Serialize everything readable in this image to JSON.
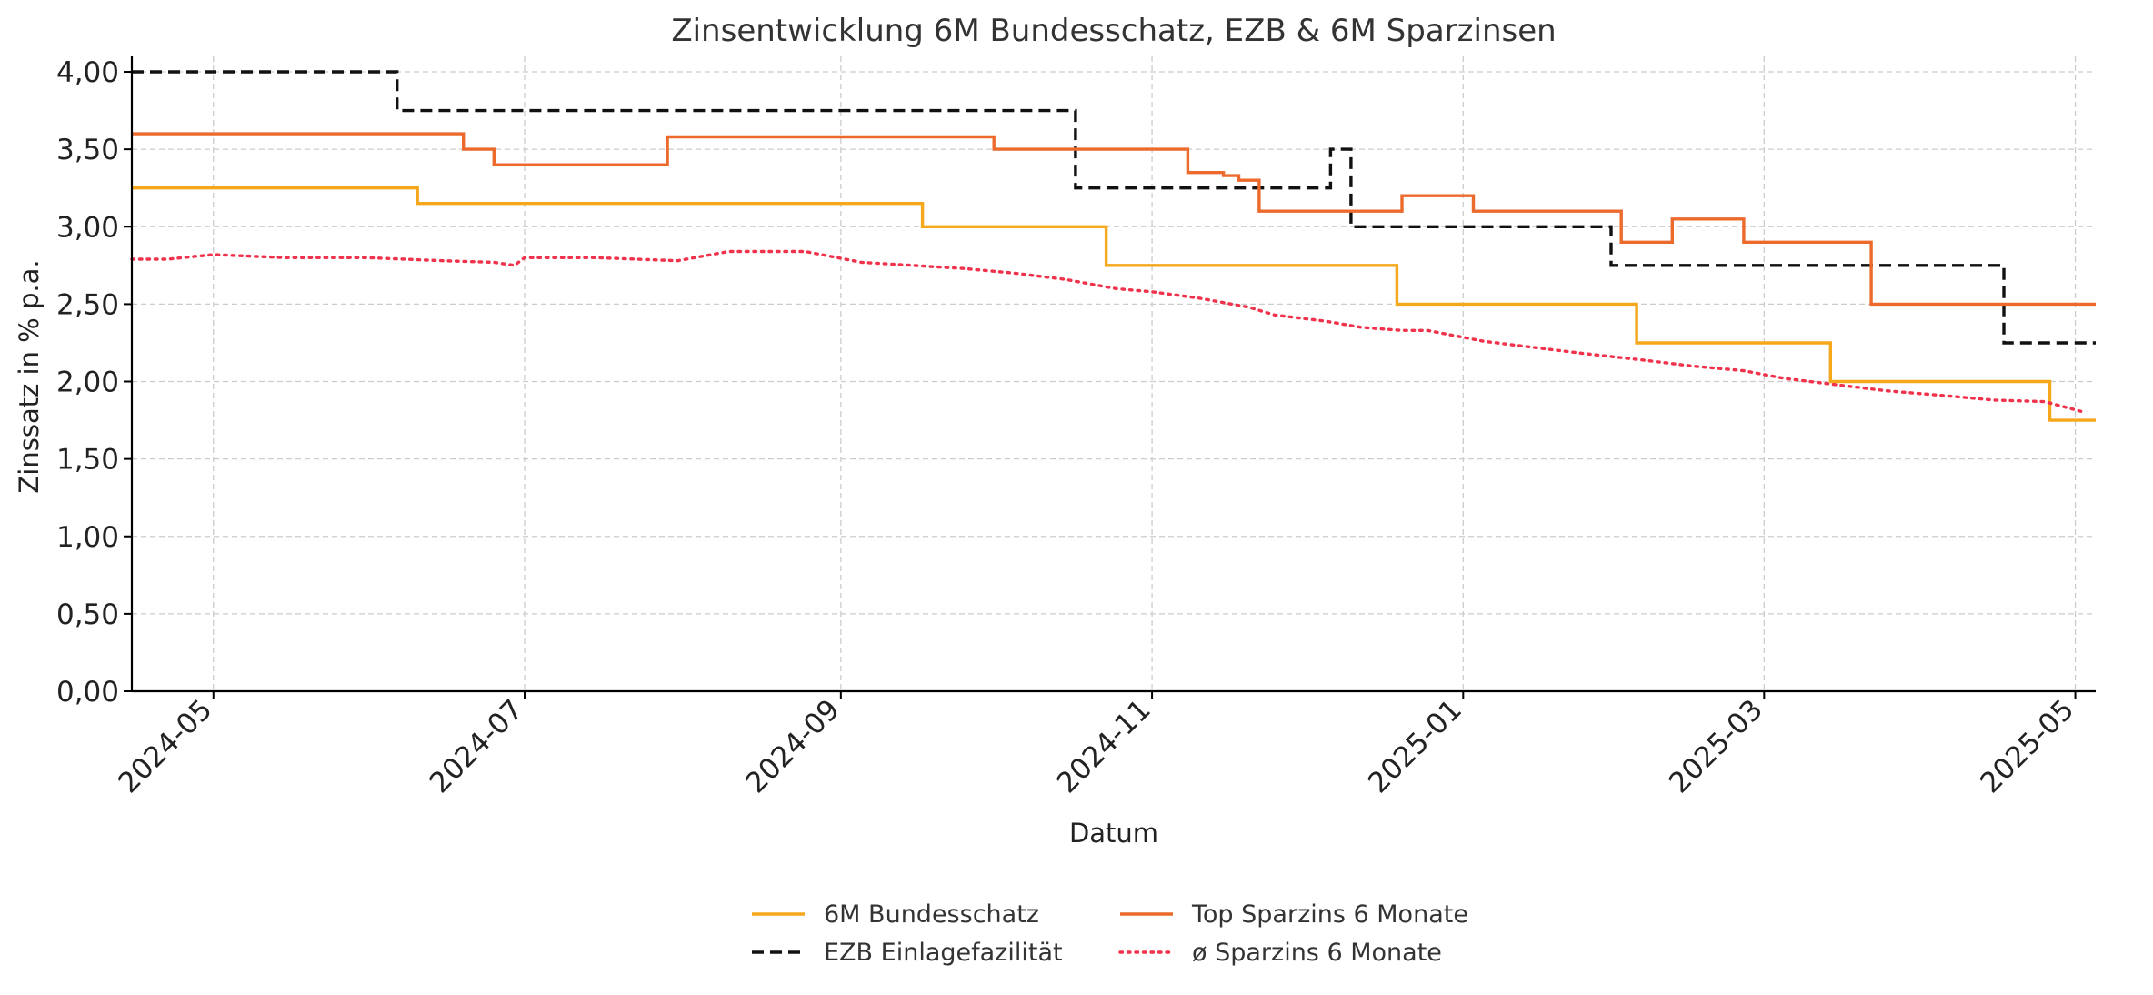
{
  "chart_data": {
    "type": "line",
    "title": "Zinsentwicklung 6M Bundesschatz, EZB & 6M Sparzinsen",
    "xlabel": "Datum",
    "ylabel": "Zinssatz in % p.a.",
    "xlim": [
      "2024-04-15",
      "2025-05-05"
    ],
    "ylim": [
      0,
      4.1
    ],
    "x_ticks": [
      "2024-05-01",
      "2024-07-01",
      "2024-09-01",
      "2024-11-01",
      "2025-01-01",
      "2025-03-01",
      "2025-05-01"
    ],
    "x_tick_labels": [
      "2024-05",
      "2024-07",
      "2024-09",
      "2024-11",
      "2025-01",
      "2025-03",
      "2025-05"
    ],
    "y_ticks": [
      0,
      0.5,
      1,
      1.5,
      2,
      2.5,
      3,
      3.5,
      4
    ],
    "y_tick_labels": [
      "0,00",
      "0,50",
      "1,00",
      "1,50",
      "2,00",
      "2,50",
      "3,00",
      "3,50",
      "4,00"
    ],
    "grid": true,
    "legend_position": "bottom-center",
    "series": [
      {
        "name": "6M Bundesschatz",
        "color": "#f5a81c",
        "style": "solid",
        "step": true,
        "points": [
          [
            "2024-04-15",
            3.25
          ],
          [
            "2024-06-10",
            3.15
          ],
          [
            "2024-09-17",
            3.0
          ],
          [
            "2024-10-23",
            2.75
          ],
          [
            "2024-12-19",
            2.5
          ],
          [
            "2025-02-04",
            2.25
          ],
          [
            "2025-03-14",
            2.0
          ],
          [
            "2025-04-26",
            1.75
          ],
          [
            "2025-05-05",
            1.75
          ]
        ]
      },
      {
        "name": "EZB Einlagefazilität",
        "color": "#111111",
        "style": "dashed",
        "step": true,
        "points": [
          [
            "2024-04-15",
            4.0
          ],
          [
            "2024-06-06",
            3.75
          ],
          [
            "2024-10-17",
            3.25
          ],
          [
            "2024-12-06",
            3.5
          ],
          [
            "2024-12-10",
            3.0
          ],
          [
            "2025-01-30",
            2.75
          ],
          [
            "2025-04-17",
            2.25
          ],
          [
            "2025-05-05",
            2.25
          ]
        ]
      },
      {
        "name": "Top Sparzins 6 Monate",
        "color": "#ec6a2c",
        "style": "solid",
        "step": true,
        "points": [
          [
            "2024-04-15",
            3.6
          ],
          [
            "2024-06-19",
            3.5
          ],
          [
            "2024-06-25",
            3.4
          ],
          [
            "2024-07-29",
            3.58
          ],
          [
            "2024-10-01",
            3.5
          ],
          [
            "2024-11-08",
            3.35
          ],
          [
            "2024-11-15",
            3.33
          ],
          [
            "2024-11-18",
            3.3
          ],
          [
            "2024-11-22",
            3.1
          ],
          [
            "2024-12-20",
            3.2
          ],
          [
            "2025-01-03",
            3.1
          ],
          [
            "2025-02-01",
            2.9
          ],
          [
            "2025-02-11",
            3.05
          ],
          [
            "2025-02-25",
            2.9
          ],
          [
            "2025-03-22",
            2.5
          ],
          [
            "2025-05-05",
            2.5
          ]
        ]
      },
      {
        "name": "ø Sparzins 6 Monate",
        "color": "#f0334c",
        "style": "dotted",
        "step": false,
        "points": [
          [
            "2024-04-15",
            2.79
          ],
          [
            "2024-04-22",
            2.79
          ],
          [
            "2024-05-01",
            2.82
          ],
          [
            "2024-05-15",
            2.8
          ],
          [
            "2024-05-31",
            2.8
          ],
          [
            "2024-06-15",
            2.78
          ],
          [
            "2024-06-25",
            2.77
          ],
          [
            "2024-06-29",
            2.75
          ],
          [
            "2024-07-01",
            2.8
          ],
          [
            "2024-07-15",
            2.8
          ],
          [
            "2024-07-31",
            2.78
          ],
          [
            "2024-08-10",
            2.84
          ],
          [
            "2024-08-25",
            2.84
          ],
          [
            "2024-09-05",
            2.77
          ],
          [
            "2024-09-15",
            2.75
          ],
          [
            "2024-09-25",
            2.73
          ],
          [
            "2024-10-05",
            2.7
          ],
          [
            "2024-10-15",
            2.66
          ],
          [
            "2024-10-25",
            2.6
          ],
          [
            "2024-11-01",
            2.58
          ],
          [
            "2024-11-10",
            2.54
          ],
          [
            "2024-11-20",
            2.48
          ],
          [
            "2024-11-25",
            2.43
          ],
          [
            "2024-12-05",
            2.39
          ],
          [
            "2024-12-12",
            2.35
          ],
          [
            "2024-12-20",
            2.33
          ],
          [
            "2024-12-25",
            2.33
          ],
          [
            "2025-01-05",
            2.26
          ],
          [
            "2025-01-15",
            2.22
          ],
          [
            "2025-01-25",
            2.18
          ],
          [
            "2025-02-05",
            2.14
          ],
          [
            "2025-02-15",
            2.1
          ],
          [
            "2025-02-25",
            2.07
          ],
          [
            "2025-03-05",
            2.02
          ],
          [
            "2025-03-15",
            1.98
          ],
          [
            "2025-03-25",
            1.94
          ],
          [
            "2025-04-05",
            1.91
          ],
          [
            "2025-04-15",
            1.88
          ],
          [
            "2025-04-25",
            1.87
          ],
          [
            "2025-05-03",
            1.8
          ]
        ]
      }
    ]
  }
}
